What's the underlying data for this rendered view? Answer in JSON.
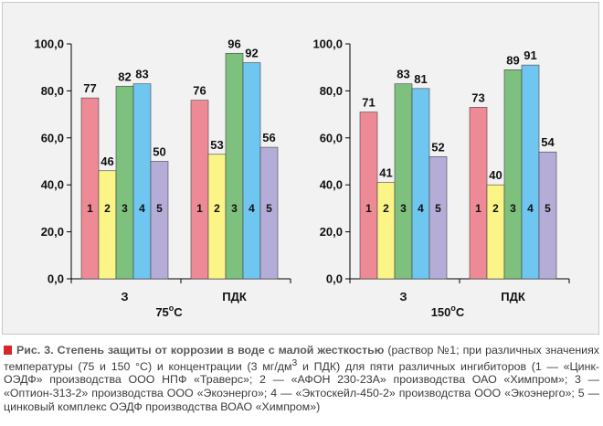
{
  "colors": {
    "series": [
      "#ee8a95",
      "#fbf487",
      "#7ec07e",
      "#6fc6f0",
      "#b6acd8"
    ],
    "marker": "#d7252a"
  },
  "chart_data": [
    {
      "type": "bar",
      "categories": [
        "З",
        "ПДК"
      ],
      "series_labels": [
        "1",
        "2",
        "3",
        "4",
        "5"
      ],
      "values": [
        [
          77,
          46,
          82,
          83,
          50
        ],
        [
          76,
          53,
          96,
          92,
          56
        ]
      ],
      "yticks": [
        "0,0",
        "20,0",
        "40,0",
        "60,0",
        "80,0",
        "100,0"
      ],
      "ylim": [
        0,
        100
      ],
      "temperature": {
        "value": "75",
        "sup": "o",
        "unit": "C"
      }
    },
    {
      "type": "bar",
      "categories": [
        "З",
        "ПДК"
      ],
      "series_labels": [
        "1",
        "2",
        "3",
        "4",
        "5"
      ],
      "values": [
        [
          71,
          41,
          83,
          81,
          52
        ],
        [
          73,
          40,
          89,
          91,
          54
        ]
      ],
      "yticks": [
        "0,0",
        "20,0",
        "40,0",
        "60,0",
        "80,0",
        "100,0"
      ],
      "ylim": [
        0,
        100
      ],
      "temperature": {
        "value": "150",
        "sup": "o",
        "unit": "C"
      }
    }
  ],
  "caption": {
    "title": "Рис. 3. Степень защиты от коррозии в воде с малой жесткостью",
    "body_before_sup": " (раствор №1; при различных значениях температуры (75 и 150 °С) и концентрации (3 мг/дм",
    "sup": "3",
    "body_after_sup": " и ПДК) для пяти различных ингибиторов (1 — «Цинк-ОЭДФ» производства ООО НПФ «Траверс»; 2 — «АФОН 230-23А» производства ОАО «Химпром»; 3 — «Оптион-313-2» производства ООО «Экоэнерго»; 4 — «Эктоскейл-450-2» производства ООО «Экоэнерго»; 5 — цинковый комплекс ОЭДФ производства ВОАО «Химпром»)"
  }
}
